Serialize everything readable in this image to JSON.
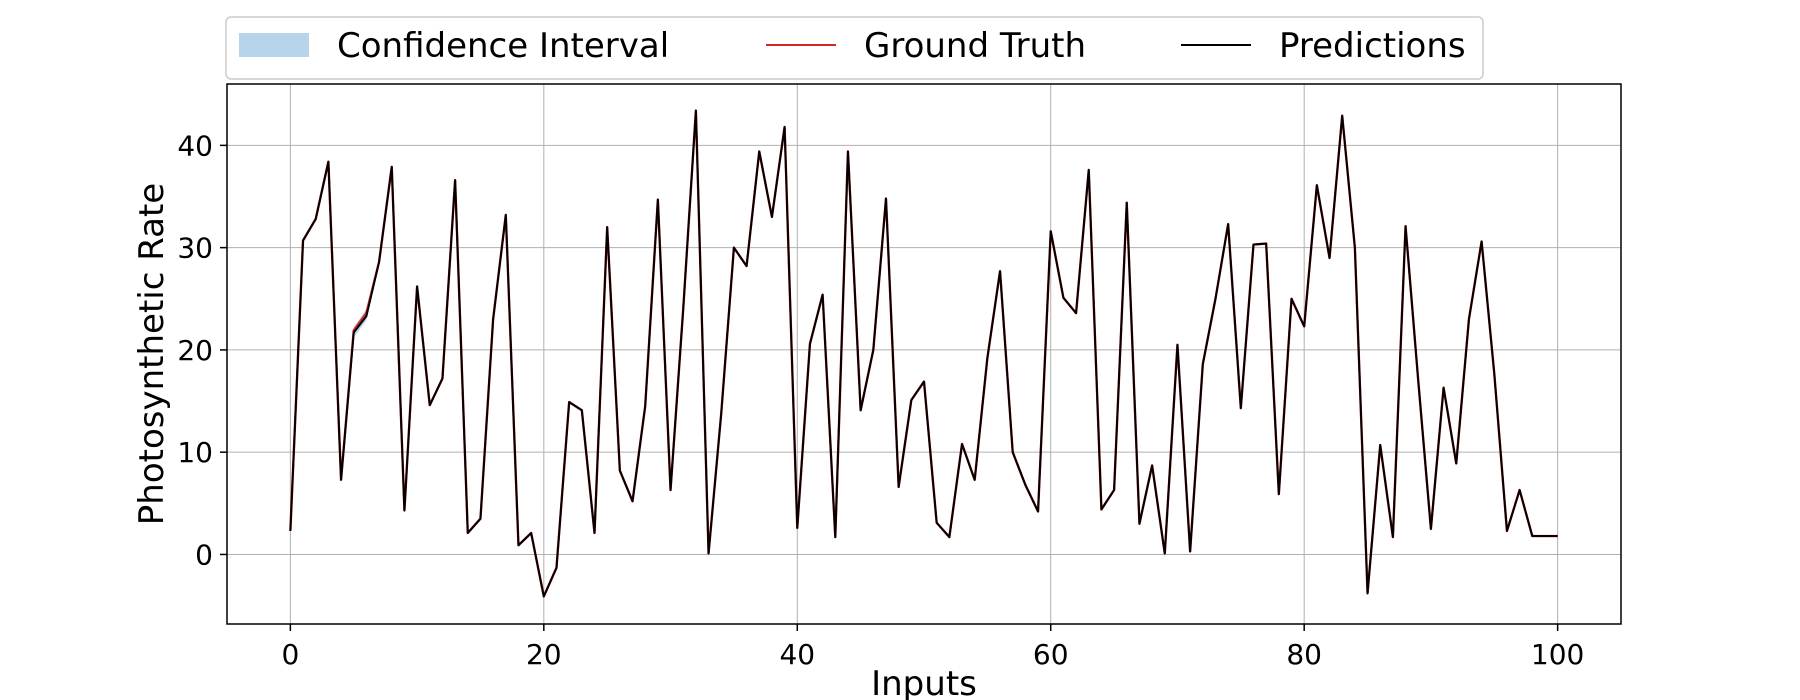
{
  "chart_data": {
    "type": "line",
    "title": "",
    "xlabel": "Inputs",
    "ylabel": "Photosynthetic Rate",
    "xlim": [
      -5,
      105
    ],
    "ylim": [
      -6.8,
      46
    ],
    "xticks": [
      0,
      20,
      40,
      60,
      80,
      100
    ],
    "yticks": [
      0,
      10,
      20,
      30,
      40
    ],
    "grid": true,
    "legend_position": "top-center, outside plot",
    "legend": [
      "Confidence Interval",
      "Ground Truth",
      "Predictions"
    ],
    "colors": {
      "confidence_interval": "#b8d4ea",
      "ground_truth": "#d62728",
      "predictions": "#000000",
      "grid": "#b0b0b0"
    },
    "x": [
      0,
      1,
      2,
      3,
      4,
      5,
      6,
      7,
      8,
      9,
      10,
      11,
      12,
      13,
      14,
      15,
      16,
      17,
      18,
      19,
      20,
      21,
      22,
      23,
      24,
      25,
      26,
      27,
      28,
      29,
      30,
      31,
      32,
      33,
      34,
      35,
      36,
      37,
      38,
      39,
      40,
      41,
      42,
      43,
      44,
      45,
      46,
      47,
      48,
      49,
      50,
      51,
      52,
      53,
      54,
      55,
      56,
      57,
      58,
      59,
      60,
      61,
      62,
      63,
      64,
      65,
      66,
      67,
      68,
      69,
      70,
      71,
      72,
      73,
      74,
      75,
      76,
      77,
      78,
      79,
      80,
      81,
      82,
      83,
      84,
      85,
      86,
      87,
      88,
      89,
      90,
      91,
      92,
      93,
      94,
      95,
      96,
      97,
      98,
      99,
      100
    ],
    "series": [
      {
        "name": "Ground Truth",
        "values": [
          2.3,
          30.7,
          32.8,
          38.4,
          7.3,
          21.9,
          23.6,
          28.6,
          37.9,
          4.3,
          26.2,
          14.6,
          17.2,
          36.6,
          2.1,
          3.5,
          23.0,
          33.2,
          0.9,
          2.1,
          -4.1,
          -1.3,
          14.9,
          14.1,
          2.1,
          32.0,
          8.2,
          5.2,
          14.5,
          34.7,
          6.3,
          24.0,
          43.4,
          0.1,
          13.8,
          30.0,
          28.2,
          39.4,
          33.0,
          41.8,
          2.6,
          20.6,
          25.4,
          1.7,
          39.4,
          14.1,
          20.0,
          34.8,
          6.6,
          15.1,
          16.9,
          3.1,
          1.7,
          10.8,
          7.3,
          19.2,
          27.7,
          10.0,
          6.8,
          4.2,
          31.6,
          25.1,
          23.6,
          37.6,
          4.4,
          6.3,
          34.4,
          3.0,
          8.7,
          0.1,
          20.5,
          0.3,
          18.6,
          25.0,
          32.3,
          14.3,
          30.3,
          30.4,
          5.9,
          25.0,
          22.3,
          36.1,
          29.0,
          42.9,
          30.0,
          -3.8,
          10.7,
          1.7,
          32.1,
          17.0,
          2.5,
          16.3,
          8.9,
          23.0,
          30.6,
          17.7,
          2.3,
          6.3,
          1.8,
          1.8,
          1.8
        ]
      },
      {
        "name": "Predictions",
        "values": [
          2.3,
          30.7,
          32.8,
          38.4,
          7.3,
          21.7,
          23.3,
          28.6,
          37.9,
          4.3,
          26.2,
          14.6,
          17.2,
          36.6,
          2.1,
          3.5,
          23.0,
          33.2,
          0.9,
          2.1,
          -4.1,
          -1.3,
          14.9,
          14.1,
          2.1,
          32.0,
          8.2,
          5.2,
          14.5,
          34.7,
          6.3,
          24.0,
          43.4,
          0.1,
          13.8,
          30.0,
          28.2,
          39.4,
          33.0,
          41.8,
          2.6,
          20.6,
          25.4,
          1.7,
          39.4,
          14.1,
          20.0,
          34.8,
          6.6,
          15.1,
          16.9,
          3.1,
          1.7,
          10.8,
          7.3,
          19.2,
          27.7,
          10.0,
          6.8,
          4.2,
          31.6,
          25.1,
          23.6,
          37.6,
          4.4,
          6.3,
          34.4,
          3.0,
          8.7,
          0.1,
          20.5,
          0.3,
          18.6,
          25.0,
          32.3,
          14.3,
          30.3,
          30.4,
          5.9,
          25.0,
          22.3,
          36.1,
          29.0,
          42.9,
          30.0,
          -3.8,
          10.7,
          1.7,
          32.1,
          17.0,
          2.5,
          16.3,
          8.9,
          23.0,
          30.6,
          17.7,
          2.3,
          6.3,
          1.8,
          1.8,
          1.8
        ]
      }
    ],
    "confidence_interval": {
      "name": "Confidence Interval",
      "lower": [
        2.3,
        30.7,
        32.8,
        38.4,
        7.3,
        21.2,
        22.9,
        28.6,
        37.9,
        4.3,
        26.2,
        14.6,
        17.2,
        36.6,
        2.1,
        3.5,
        23.0,
        33.2,
        0.9,
        2.1,
        -4.1,
        -1.3,
        14.9,
        14.1,
        2.1,
        32.0,
        8.2,
        5.2,
        14.5,
        34.7,
        6.3,
        24.0,
        43.4,
        0.1,
        13.8,
        30.0,
        28.2,
        39.4,
        33.0,
        41.8,
        2.6,
        20.6,
        25.4,
        1.7,
        39.4,
        14.1,
        20.0,
        34.8,
        6.6,
        15.1,
        16.9,
        3.1,
        1.7,
        10.8,
        7.3,
        19.2,
        27.7,
        10.0,
        6.8,
        4.2,
        31.6,
        25.1,
        23.6,
        37.6,
        4.4,
        6.3,
        34.4,
        3.0,
        8.7,
        0.1,
        20.5,
        0.3,
        18.6,
        25.0,
        32.3,
        14.3,
        30.3,
        30.4,
        5.9,
        25.0,
        22.3,
        36.1,
        29.0,
        42.9,
        30.0,
        -3.8,
        10.7,
        1.7,
        32.1,
        17.0,
        2.5,
        16.3,
        8.9,
        23.0,
        30.6,
        17.7,
        2.3,
        6.3,
        1.8,
        1.8,
        1.8
      ],
      "upper": [
        2.3,
        30.7,
        32.8,
        38.4,
        7.3,
        22.2,
        24.0,
        28.6,
        37.9,
        4.3,
        26.2,
        14.6,
        17.2,
        36.6,
        2.1,
        3.5,
        23.0,
        33.2,
        0.9,
        2.1,
        -4.1,
        -1.3,
        14.9,
        14.1,
        2.1,
        32.0,
        8.2,
        5.2,
        14.5,
        34.7,
        6.3,
        24.0,
        43.4,
        0.1,
        13.8,
        30.0,
        28.2,
        39.4,
        33.0,
        41.8,
        2.6,
        20.6,
        25.4,
        1.7,
        39.4,
        14.1,
        20.0,
        34.8,
        6.6,
        15.1,
        16.9,
        3.1,
        1.7,
        10.8,
        7.3,
        19.2,
        27.7,
        10.0,
        6.8,
        4.2,
        31.6,
        25.1,
        23.6,
        37.6,
        4.4,
        6.3,
        34.4,
        3.0,
        8.7,
        0.1,
        20.5,
        0.3,
        18.6,
        25.0,
        32.3,
        14.3,
        30.3,
        30.4,
        5.9,
        25.0,
        22.3,
        36.1,
        29.0,
        42.9,
        30.0,
        -3.8,
        10.7,
        1.7,
        32.1,
        17.0,
        2.5,
        16.3,
        8.9,
        23.0,
        30.6,
        17.7,
        2.3,
        6.3,
        1.8,
        1.8,
        1.8
      ]
    }
  }
}
